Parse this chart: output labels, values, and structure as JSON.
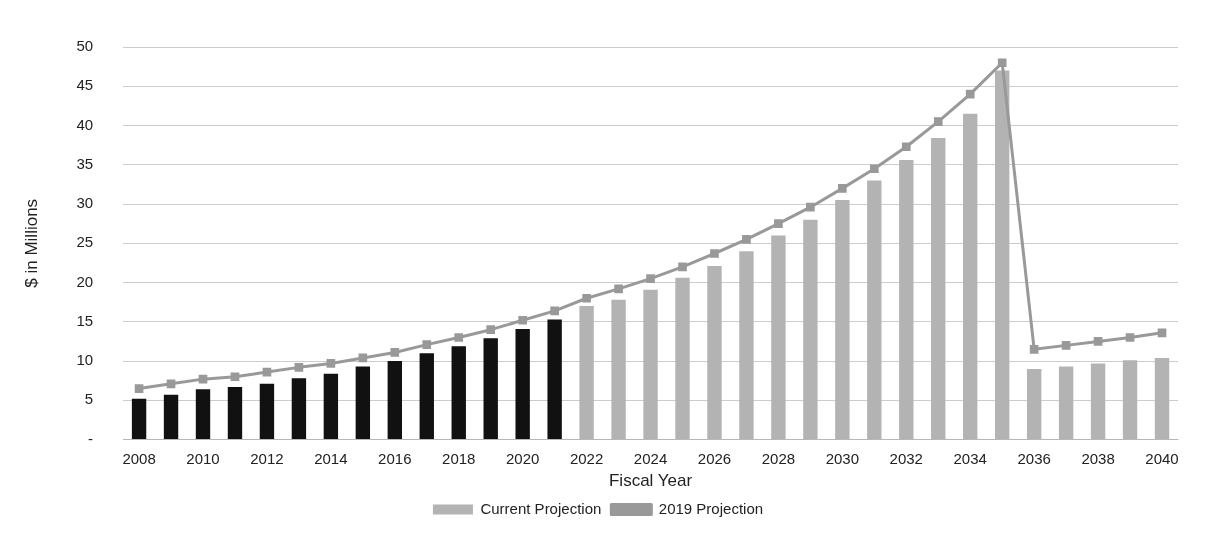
{
  "chart_data": {
    "type": "bar",
    "xlabel": "Fiscal Year",
    "ylabel": "$ in Millions",
    "categories": [
      "2008",
      null,
      "2010",
      null,
      "2012",
      null,
      "2014",
      null,
      "2016",
      null,
      "2018",
      null,
      "2020",
      null,
      "2022",
      null,
      "2024",
      null,
      "2026",
      null,
      "2028",
      null,
      "2030",
      null,
      "2032",
      null,
      "2034",
      null,
      "2036",
      null,
      "2038",
      null,
      "2040"
    ],
    "series": [
      {
        "name": "Current Projection",
        "color": "#b3b3b3",
        "colors": [
          "#111111",
          "#111111",
          "#111111",
          "#111111",
          "#111111",
          "#111111",
          "#111111",
          "#111111",
          "#111111",
          "#111111",
          "#111111",
          "#111111",
          "#111111",
          "#111111",
          "#b3b3b3",
          "#b3b3b3",
          "#b3b3b3",
          "#b3b3b3",
          "#b3b3b3",
          "#b3b3b3",
          "#b3b3b3",
          "#b3b3b3",
          "#b3b3b3",
          "#b3b3b3",
          "#b3b3b3",
          "#b3b3b3",
          "#b3b3b3",
          "#b3b3b3",
          "#b3b3b3",
          "#b3b3b3",
          "#b3b3b3",
          "#b3b3b3",
          "#b3b3b3"
        ],
        "values": [
          5.2,
          5.7,
          6.4,
          6.7,
          7.1,
          7.8,
          8.4,
          9.3,
          10.0,
          11.0,
          11.9,
          12.9,
          14.1,
          15.3,
          17.0,
          17.8,
          19.1,
          20.6,
          22.1,
          24.0,
          26.0,
          28.0,
          30.5,
          33.0,
          35.6,
          38.4,
          41.5,
          47.0,
          9.0,
          9.3,
          9.7,
          10.1,
          10.4
        ]
      },
      {
        "name": "2019 Projection",
        "type": "line",
        "color": "#999999",
        "values": [
          6.5,
          7.1,
          7.7,
          8.0,
          8.6,
          9.2,
          9.7,
          10.4,
          11.1,
          12.1,
          13.0,
          14.0,
          15.2,
          16.4,
          18.0,
          19.2,
          20.5,
          22.0,
          23.7,
          25.5,
          27.5,
          29.6,
          32.0,
          34.5,
          37.3,
          40.5,
          44.0,
          48.0,
          11.5,
          12.0,
          12.5,
          13.0,
          13.6
        ]
      }
    ],
    "ylim": [
      0,
      50
    ],
    "yticks": [
      {
        "value": 0,
        "label": "-"
      },
      5,
      10,
      15,
      20,
      25,
      30,
      35,
      40,
      45,
      50
    ],
    "grid": "y",
    "legend": "bottom",
    "marker": "square",
    "line_style": "solid"
  }
}
